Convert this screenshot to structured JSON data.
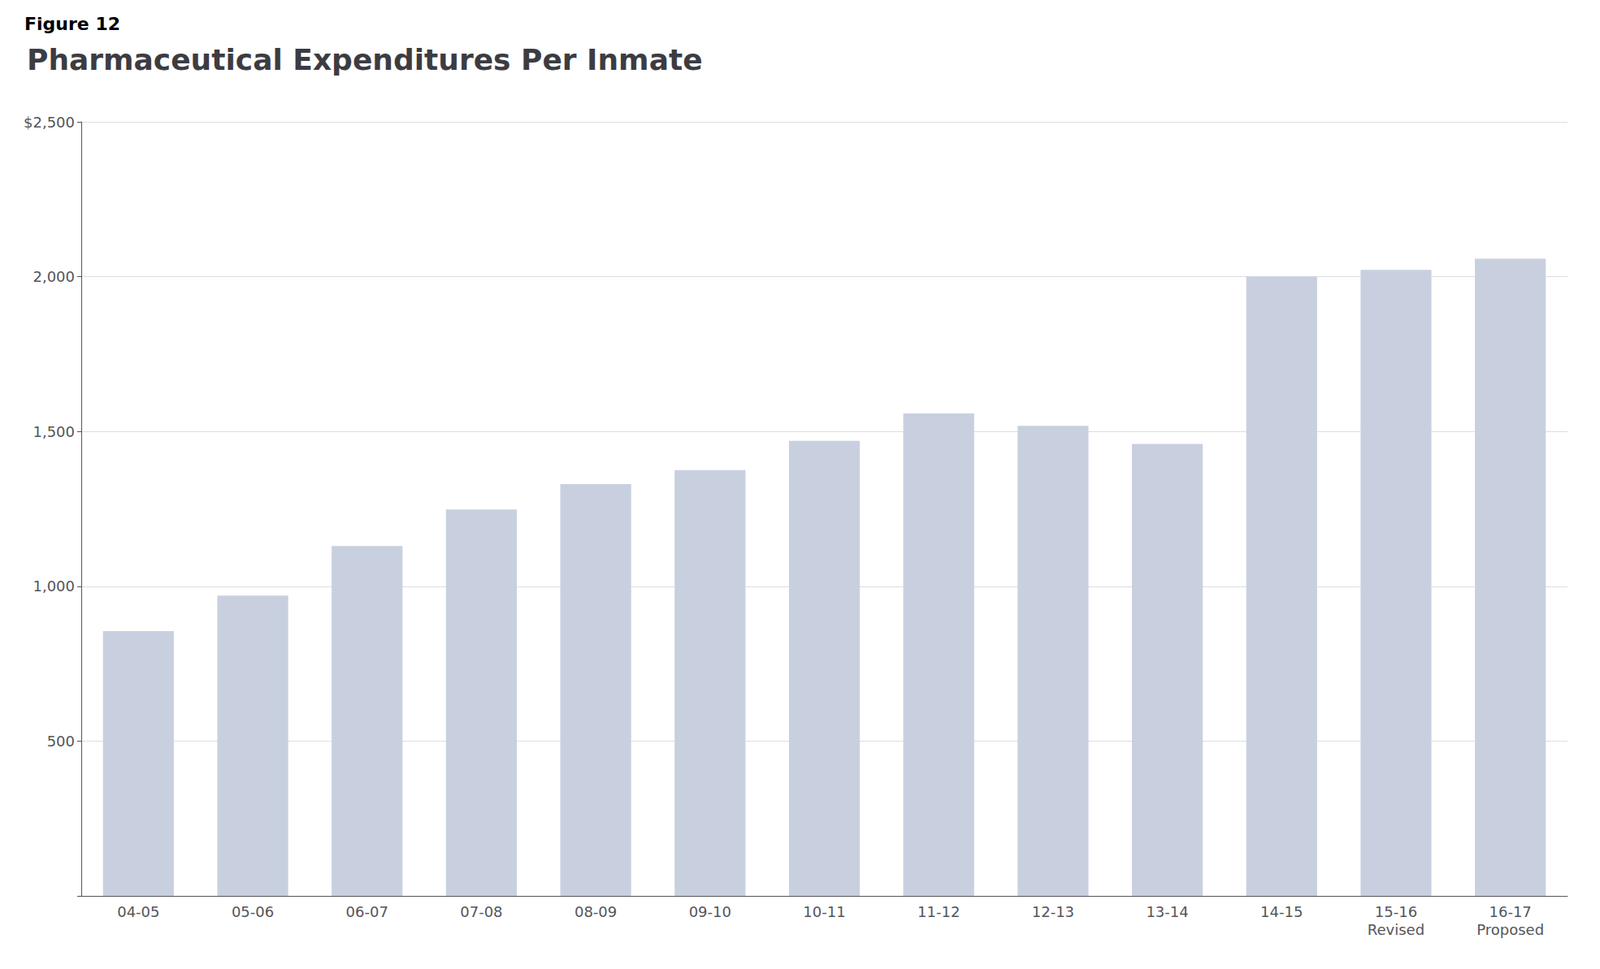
{
  "chart_data": {
    "type": "bar",
    "title": "Pharmaceutical Expenditures Per Inmate",
    "annotations": [
      "Figure 12"
    ],
    "categories": [
      "04-05",
      "05-06",
      "06-07",
      "07-08",
      "08-09",
      "09-10",
      "10-11",
      "11-12",
      "12-13",
      "13-14",
      "14-15",
      "15-16\nRevised",
      "16-17\nProposed"
    ],
    "values": [
      855,
      970,
      1130,
      1248,
      1330,
      1375,
      1470,
      1558,
      1518,
      1460,
      2000,
      2022,
      2058
    ],
    "color": "#C8D0E0",
    "ylim": [
      0,
      2500
    ],
    "yticks": [
      500,
      {
        "value": 1000,
        "label": "1,000"
      },
      {
        "value": 1500,
        "label": "1,500"
      },
      {
        "value": 2000,
        "label": "2,000"
      },
      {
        "value": 2500,
        "label": "$2,500"
      }
    ],
    "grid": true
  }
}
